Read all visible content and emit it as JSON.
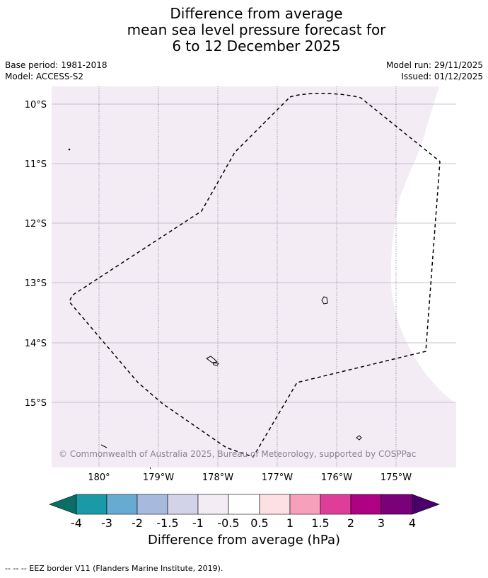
{
  "title": {
    "line1": "Difference from average",
    "line2": "mean sea level pressure forecast for",
    "line3": "6 to 12 December 2025"
  },
  "meta": {
    "base_period": "Base period: 1981-2018",
    "model": "Model: ACCESS-S2",
    "model_run": "Model run: 29/11/2025",
    "issued": "Issued: 01/12/2025"
  },
  "map": {
    "lat_labels": [
      "10°S",
      "11°S",
      "12°S",
      "13°S",
      "14°S",
      "15°S"
    ],
    "lon_labels": [
      "180°",
      "179°W",
      "178°W",
      "177°W",
      "176°W",
      "175°W"
    ],
    "copyright": "© Commonwealth of Australia 2025, Bureau of Meteorology, supported by COSPPac",
    "fill_color": "#f3ecf5"
  },
  "colorbar": {
    "title": "Difference from average (hPa)",
    "ticks": [
      "-4",
      "-3",
      "-2",
      "-1.5",
      "-1",
      "-0.5",
      "0.5",
      "1",
      "1.5",
      "2",
      "3",
      "4"
    ],
    "colors": [
      "#0a6e66",
      "#1a9aa6",
      "#68abd2",
      "#a7bade",
      "#d2d3e8",
      "#f3ecf5",
      "#ffffff",
      "#fde0e2",
      "#f7a0bc",
      "#de3e9a",
      "#ae0183",
      "#7a0179",
      "#49006a"
    ]
  },
  "legend": {
    "eez": "--  --  -- EEZ border V11 (Flanders Marine Institute, 2019)."
  }
}
